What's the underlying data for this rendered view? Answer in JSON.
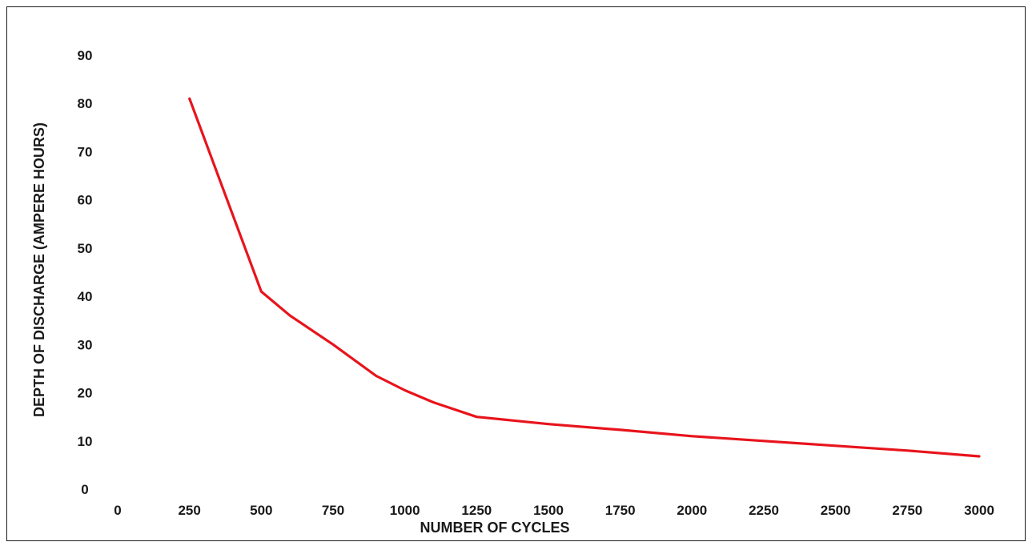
{
  "chart_data": {
    "type": "line",
    "title": "",
    "xlabel": "NUMBER OF CYCLES",
    "ylabel": "DEPTH OF DISCHARGE (AMPERE HOURS)",
    "x_ticks": [
      "0",
      "250",
      "500",
      "750",
      "1000",
      "1250",
      "1500",
      "1750",
      "2000",
      "2250",
      "2500",
      "2750",
      "3000"
    ],
    "y_ticks": [
      "0",
      "10",
      "20",
      "30",
      "40",
      "50",
      "60",
      "70",
      "80",
      "90"
    ],
    "xlim": [
      0,
      3000
    ],
    "ylim": [
      0,
      90
    ],
    "grid": false,
    "series": [
      {
        "color": "#e8141c",
        "x": [
          250,
          500,
          600,
          750,
          900,
          1000,
          1100,
          1250,
          1500,
          1750,
          2000,
          2250,
          2500,
          2750,
          3000
        ],
        "y": [
          81,
          41,
          36,
          30,
          23.5,
          20.5,
          18,
          15,
          13.5,
          12.3,
          11,
          10,
          9,
          8,
          6.8
        ]
      }
    ]
  }
}
